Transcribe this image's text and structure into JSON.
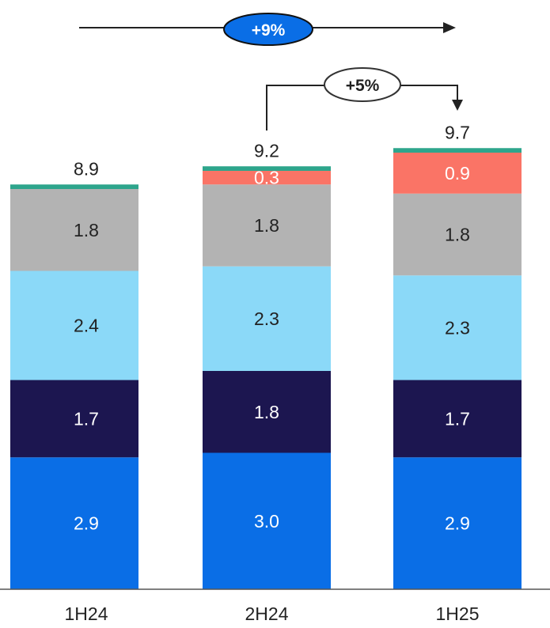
{
  "chart_data": {
    "type": "bar",
    "stacked": true,
    "categories": [
      "1H24",
      "2H24",
      "1H25"
    ],
    "series": [
      {
        "values": [
          2.9,
          3.0,
          2.9
        ],
        "color": "#0a6ee6",
        "label_color": "#ffffff"
      },
      {
        "values": [
          1.7,
          1.8,
          1.7
        ],
        "color": "#1c1650",
        "label_color": "#ffffff"
      },
      {
        "values": [
          2.4,
          2.3,
          2.3
        ],
        "color": "#8bd9f8",
        "label_color": "#222222"
      },
      {
        "values": [
          1.8,
          1.8,
          1.8
        ],
        "color": "#b3b3b3",
        "label_color": "#222222"
      },
      {
        "values": [
          0.0,
          0.3,
          0.9
        ],
        "color": "#fa7466",
        "label_color": "#ffffff",
        "labels": [
          "",
          "0.3",
          "0.9"
        ]
      },
      {
        "values": [
          0.1,
          0.1,
          0.1
        ],
        "color": "#2ea58c",
        "label_color": "#222222",
        "labels": [
          "",
          "",
          ""
        ]
      }
    ],
    "value_labels": [
      [
        "2.9",
        "3.0",
        "2.9"
      ],
      [
        "1.7",
        "1.8",
        "1.7"
      ],
      [
        "2.4",
        "2.3",
        "2.3"
      ],
      [
        "1.8",
        "1.8",
        "1.8"
      ]
    ],
    "totals": [
      "8.9",
      "9.2",
      "9.7"
    ],
    "annotations": [
      {
        "text": "+9%",
        "from": "1H24",
        "to": "1H25",
        "style": "filled",
        "color": "#0a6ee6"
      },
      {
        "text": "+5%",
        "from": "2H24",
        "to": "1H25",
        "style": "outline",
        "color": "#333333"
      }
    ],
    "title": "",
    "xlabel": "",
    "ylabel": "",
    "grid": false,
    "legend": "none"
  }
}
